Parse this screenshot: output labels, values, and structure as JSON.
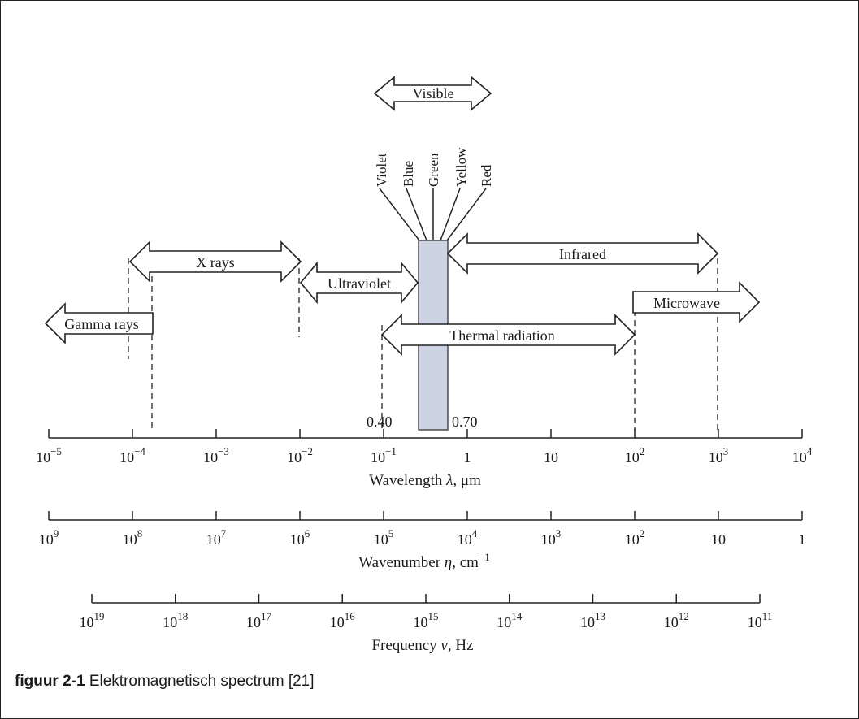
{
  "figure": {
    "caption_label": "figuur 2-1",
    "caption_text": "Elektromagnetisch spectrum [21]"
  },
  "bands": {
    "visible": "Visible",
    "x_rays": "X rays",
    "ultraviolet": "Ultraviolet",
    "gamma_rays": "Gamma rays",
    "infrared": "Infrared",
    "microwave": "Microwave",
    "thermal_radiation": "Thermal radiation"
  },
  "colors": [
    "Violet",
    "Blue",
    "Green",
    "Yellow",
    "Red"
  ],
  "visible_limits": {
    "lower": "0.40",
    "upper": "0.70",
    "band_fill": "#cdd3e2"
  },
  "axes": {
    "wavelength": {
      "label_text": "Wavelength ",
      "label_symbol": "λ",
      "label_unit": ", μm",
      "ticks": [
        {
          "base": "10",
          "exp": "−5"
        },
        {
          "base": "10",
          "exp": "−4"
        },
        {
          "base": "10",
          "exp": "−3"
        },
        {
          "base": "10",
          "exp": "−2"
        },
        {
          "base": "10",
          "exp": "−1"
        },
        {
          "base": "1",
          "exp": ""
        },
        {
          "base": "10",
          "exp": ""
        },
        {
          "base": "10",
          "exp": "2"
        },
        {
          "base": "10",
          "exp": "3"
        },
        {
          "base": "10",
          "exp": "4"
        }
      ]
    },
    "wavenumber": {
      "label_text": "Wavenumber ",
      "label_symbol": "η",
      "label_unit": ", cm",
      "label_unit_exp": "−1",
      "ticks": [
        {
          "base": "10",
          "exp": "9"
        },
        {
          "base": "10",
          "exp": "8"
        },
        {
          "base": "10",
          "exp": "7"
        },
        {
          "base": "10",
          "exp": "6"
        },
        {
          "base": "10",
          "exp": "5"
        },
        {
          "base": "10",
          "exp": "4"
        },
        {
          "base": "10",
          "exp": "3"
        },
        {
          "base": "10",
          "exp": "2"
        },
        {
          "base": "10",
          "exp": ""
        },
        {
          "base": "1",
          "exp": ""
        }
      ]
    },
    "frequency": {
      "label_text": "Frequency ",
      "label_symbol": "ν",
      "label_unit": ",  Hz",
      "ticks": [
        {
          "base": "10",
          "exp": "19"
        },
        {
          "base": "10",
          "exp": "18"
        },
        {
          "base": "10",
          "exp": "17"
        },
        {
          "base": "10",
          "exp": "16"
        },
        {
          "base": "10",
          "exp": "15"
        },
        {
          "base": "10",
          "exp": "14"
        },
        {
          "base": "10",
          "exp": "13"
        },
        {
          "base": "10",
          "exp": "12"
        },
        {
          "base": "10",
          "exp": "11"
        }
      ]
    }
  }
}
